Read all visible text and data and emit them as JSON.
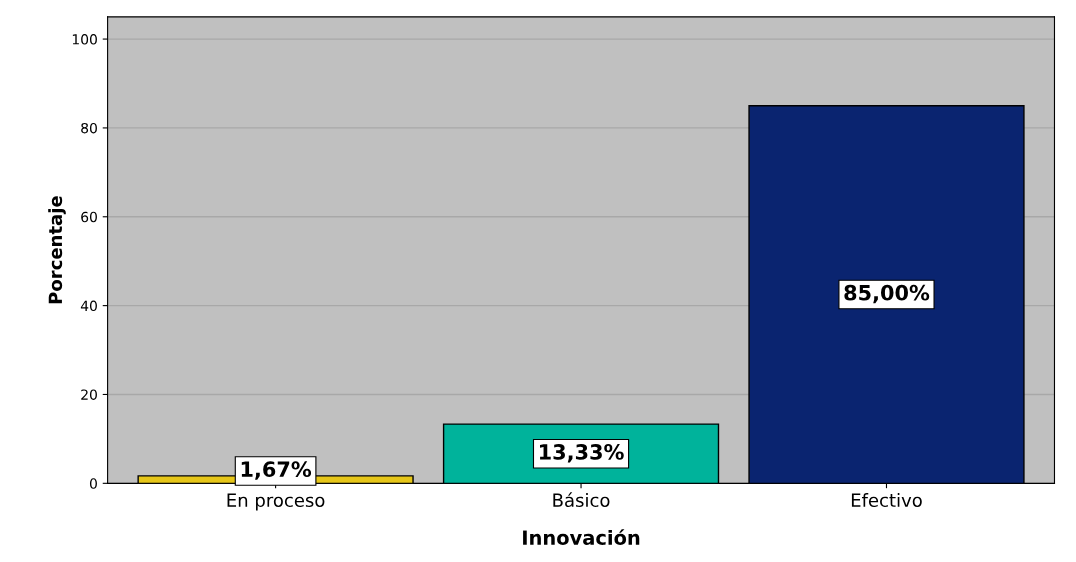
{
  "chart_data": {
    "type": "bar",
    "categories": [
      "En proceso",
      "Básico",
      "Efectivo"
    ],
    "values": [
      1.67,
      13.33,
      85.0
    ],
    "colors": [
      "#e6c619",
      "#00b39b",
      "#0a2470"
    ],
    "value_labels": [
      "1,67%",
      "13,33%",
      "85,00%"
    ],
    "xlabel": "Innovación",
    "ylabel": "Porcentaje",
    "ylim": [
      0,
      105
    ],
    "yticks": [
      0,
      20,
      40,
      60,
      80,
      100
    ],
    "grid": "y"
  }
}
